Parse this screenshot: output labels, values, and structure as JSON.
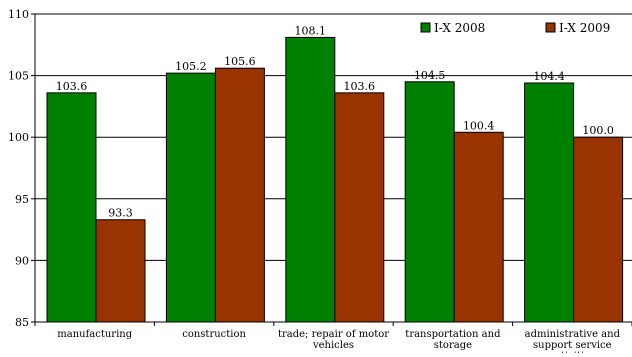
{
  "chart_data": {
    "type": "bar",
    "title": "",
    "xlabel": "",
    "ylabel": "",
    "categories": [
      "manufacturing",
      "construction",
      "trade; repair of motor vehicles",
      "transportation and storage",
      "administrative and support service activities"
    ],
    "series": [
      {
        "name": "I-X 2008",
        "color": "#008000",
        "values": [
          103.6,
          105.2,
          108.1,
          104.5,
          104.4
        ]
      },
      {
        "name": "I-X 2009",
        "color": "#993300",
        "values": [
          93.3,
          105.6,
          103.6,
          100.4,
          100.0
        ]
      }
    ],
    "ylim": [
      85,
      110
    ],
    "yticks": [
      "85",
      "90",
      "95",
      "100",
      "105",
      "110"
    ],
    "data_labels": [
      [
        "103.6",
        "105.2",
        "108.1",
        "104.5",
        "104.4"
      ],
      [
        "93.3",
        "105.6",
        "103.6",
        "100.4",
        "100.0"
      ]
    ],
    "grid": true,
    "legend_position": "top-right"
  }
}
